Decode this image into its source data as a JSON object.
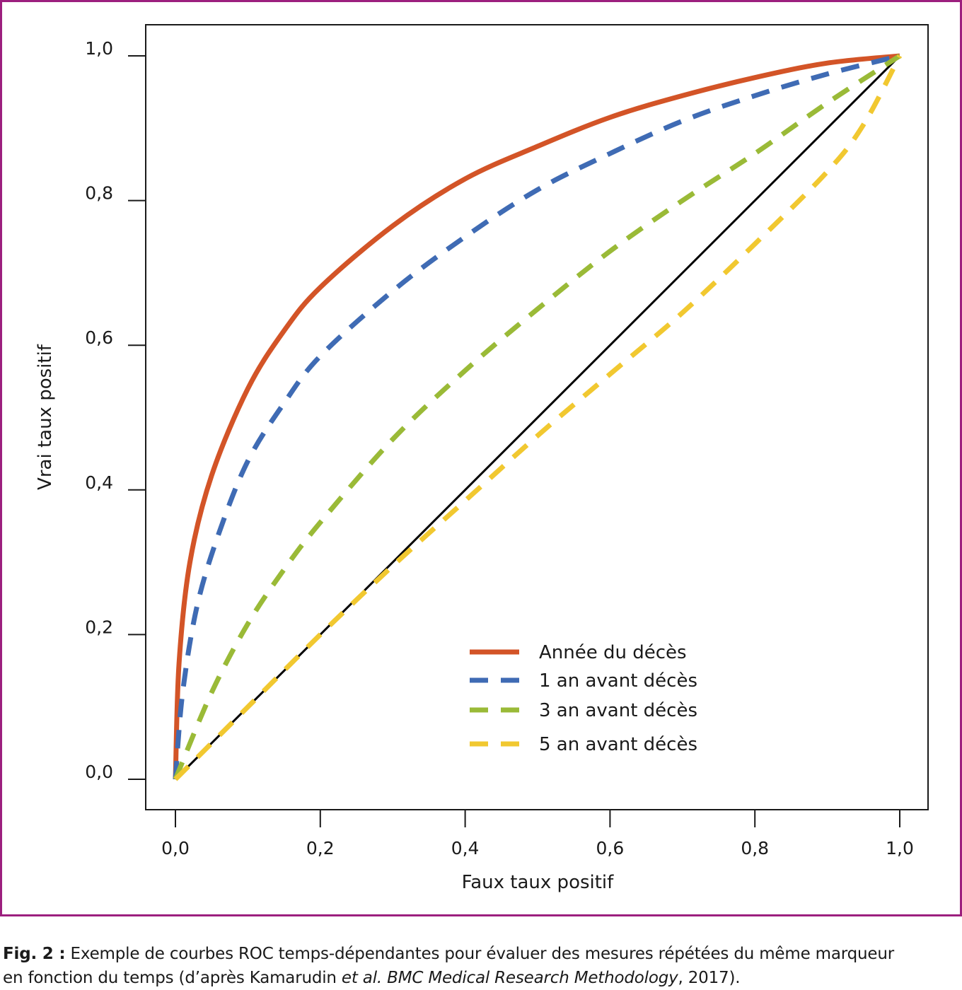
{
  "colors": {
    "frame": "#9c1f7e",
    "axis": "#1a1a1a"
  },
  "chart_data": {
    "type": "line",
    "title": "",
    "xlabel": "Faux taux positif",
    "ylabel": "Vrai taux positif",
    "xlim": [
      0,
      1
    ],
    "ylim": [
      0,
      1
    ],
    "xticks": [
      "0,0",
      "0,2",
      "0,4",
      "0,6",
      "0,8",
      "1,0"
    ],
    "yticks": [
      "0,0",
      "0,2",
      "0,4",
      "0,6",
      "0,8",
      "1,0"
    ],
    "grid": false,
    "legend_position": "bottom-right",
    "reference_line": {
      "x": [
        0,
        1
      ],
      "y": [
        0,
        1
      ],
      "color": "#000000"
    },
    "series": [
      {
        "name": "Année du décès",
        "color": "#d35427",
        "style": "solid",
        "x": [
          0,
          0.005,
          0.02,
          0.05,
          0.1,
          0.15,
          0.2,
          0.3,
          0.4,
          0.5,
          0.6,
          0.7,
          0.8,
          0.9,
          1.0
        ],
        "y": [
          0,
          0.16,
          0.3,
          0.42,
          0.54,
          0.62,
          0.68,
          0.765,
          0.83,
          0.875,
          0.915,
          0.945,
          0.97,
          0.99,
          1.0
        ]
      },
      {
        "name": "1 an avant décès",
        "color": "#3f6bb4",
        "style": "dashed",
        "x": [
          0,
          0.01,
          0.03,
          0.06,
          0.1,
          0.15,
          0.2,
          0.3,
          0.4,
          0.5,
          0.6,
          0.7,
          0.8,
          0.9,
          1.0
        ],
        "y": [
          0,
          0.12,
          0.24,
          0.34,
          0.44,
          0.52,
          0.585,
          0.675,
          0.75,
          0.815,
          0.865,
          0.91,
          0.945,
          0.975,
          1.0
        ]
      },
      {
        "name": "3 an avant décès",
        "color": "#9aba37",
        "style": "dashed",
        "x": [
          0,
          0.05,
          0.1,
          0.15,
          0.2,
          0.3,
          0.4,
          0.5,
          0.6,
          0.7,
          0.8,
          0.9,
          1.0
        ],
        "y": [
          0,
          0.12,
          0.215,
          0.29,
          0.355,
          0.47,
          0.565,
          0.65,
          0.73,
          0.8,
          0.865,
          0.935,
          1.0
        ]
      },
      {
        "name": "5 an avant décès",
        "color": "#f1c830",
        "style": "dashed",
        "x": [
          0,
          0.1,
          0.2,
          0.3,
          0.4,
          0.5,
          0.6,
          0.7,
          0.8,
          0.9,
          0.95,
          1.0
        ],
        "y": [
          0,
          0.1,
          0.2,
          0.295,
          0.385,
          0.475,
          0.56,
          0.645,
          0.74,
          0.84,
          0.905,
          1.0
        ]
      }
    ]
  },
  "caption": {
    "label": "Fig. 2 :",
    "text_line1": " Exemple de courbes ROC temps-dépendantes pour évaluer des mesures répétées du même marqueur",
    "text_line2_start": "en fonction du temps (d’après Kamarudin ",
    "text_line2_italic1": "et al.",
    "text_line2_mid": " ",
    "text_line2_italic2": "BMC Medical Research Methodology",
    "text_line2_end": ", 2017)."
  }
}
